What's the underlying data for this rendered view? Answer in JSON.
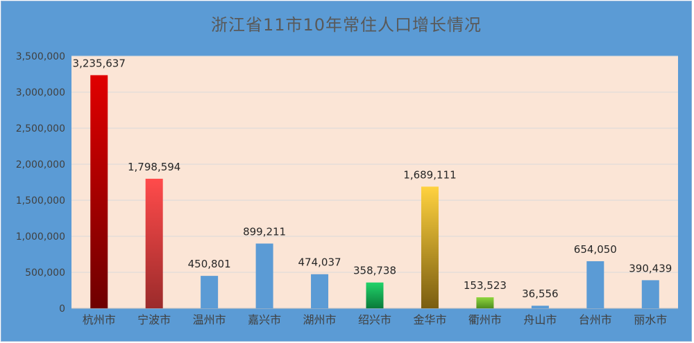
{
  "chart_data": {
    "type": "bar",
    "title": "浙江省11市10年常住人口增长情况",
    "categories": [
      "杭州市",
      "宁波市",
      "温州市",
      "嘉兴市",
      "湖州市",
      "绍兴市",
      "金华市",
      "衢州市",
      "舟山市",
      "台州市",
      "丽水市"
    ],
    "values": [
      3235637,
      1798594,
      450801,
      899211,
      474037,
      358738,
      1689111,
      153523,
      36556,
      654050,
      390439
    ],
    "data_labels": [
      "3,235,637",
      "1,798,594",
      "450,801",
      "899,211",
      "474,037",
      "358,738",
      "1,689,111",
      "153,523",
      "36,556",
      "654,050",
      "390,439"
    ],
    "ylim": [
      0,
      3500000
    ],
    "yticks": [
      0,
      500000,
      1000000,
      1500000,
      2000000,
      2500000,
      3000000,
      3500000
    ],
    "ytick_labels": [
      "0",
      "500,000",
      "1,000,000",
      "1,500,000",
      "2,000,000",
      "2,500,000",
      "3,000,000",
      "3,500,000"
    ],
    "grid": true,
    "legend": "none",
    "colors": {
      "background": "#5b9bd5",
      "plot_area": "#fbe5d6",
      "default_bar": "#5b9bd5",
      "hangzhou": [
        "#e00000",
        "#6e0000"
      ],
      "ningbo": [
        "#ff4b4b",
        "#9b2b2b"
      ],
      "shaoxing": [
        "#21d36a",
        "#0a7a3a"
      ],
      "jinhua": [
        "#ffd23f",
        "#7a5d10"
      ],
      "quzhou": [
        "#8fd63e",
        "#4f8d1f"
      ]
    }
  }
}
